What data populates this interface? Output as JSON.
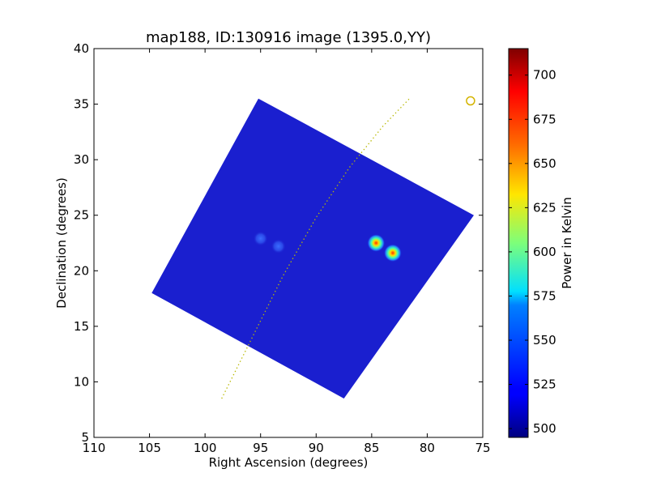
{
  "chart_data": {
    "type": "heatmap",
    "title": "map188, ID:130916 image (1395.0,YY)",
    "xlabel": "Right Ascension (degrees)",
    "ylabel": "Declination (degrees)",
    "xlim": [
      110,
      75
    ],
    "ylim": [
      5,
      40
    ],
    "xticks": [
      110,
      105,
      100,
      95,
      90,
      85,
      80,
      75
    ],
    "yticks": [
      5,
      10,
      15,
      20,
      25,
      30,
      35,
      40
    ],
    "colorbar": {
      "label": "Power in Kelvin",
      "range": [
        495,
        715
      ],
      "ticks": [
        500,
        525,
        550,
        575,
        600,
        625,
        650,
        675,
        700
      ],
      "colormap": "jet"
    },
    "background_level": 510,
    "map_region": {
      "color": "#1a1fcf",
      "corners": [
        [
          95.2,
          35.5
        ],
        [
          75.8,
          25.0
        ],
        [
          87.5,
          8.5
        ],
        [
          104.8,
          18.0
        ]
      ]
    },
    "sources": [
      {
        "ra": 84.6,
        "dec": 22.5,
        "peak": 640
      },
      {
        "ra": 83.1,
        "dec": 21.6,
        "peak": 650
      },
      {
        "ra": 95.0,
        "dec": 22.9,
        "peak": 560
      },
      {
        "ra": 93.4,
        "dec": 22.2,
        "peak": 545
      }
    ],
    "track": {
      "color": "#b8b800",
      "points": [
        [
          98.5,
          8.5
        ],
        [
          96.0,
          13.5
        ],
        [
          93.0,
          19.5
        ],
        [
          90.0,
          24.8
        ],
        [
          87.0,
          29.3
        ],
        [
          84.0,
          33.0
        ],
        [
          81.5,
          35.6
        ]
      ]
    },
    "marker": {
      "ra": 76.1,
      "dec": 35.3,
      "color": "#d4b400"
    }
  }
}
